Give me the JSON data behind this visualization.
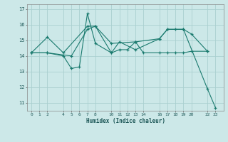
{
  "title": "",
  "xlabel": "Humidex (Indice chaleur)",
  "bg_color": "#cce8e8",
  "line_color": "#1a7a6e",
  "grid_color": "#aad0d0",
  "ylim": [
    10.5,
    17.3
  ],
  "xlim": [
    -0.5,
    24.0
  ],
  "xticks": [
    0,
    1,
    2,
    4,
    5,
    6,
    7,
    8,
    10,
    11,
    12,
    13,
    14,
    16,
    17,
    18,
    19,
    20,
    22,
    23
  ],
  "yticks": [
    11,
    12,
    13,
    14,
    15,
    16,
    17
  ],
  "series": [
    {
      "x": [
        0,
        2,
        4,
        7,
        8,
        10,
        13,
        16,
        17,
        18,
        19,
        20,
        22
      ],
      "y": [
        14.2,
        15.2,
        14.2,
        15.9,
        15.9,
        14.8,
        14.9,
        15.1,
        15.7,
        15.7,
        15.7,
        15.4,
        14.3
      ]
    },
    {
      "x": [
        0,
        2,
        4,
        5,
        6,
        7,
        8,
        10,
        11,
        12,
        13,
        14,
        16,
        17,
        18,
        19,
        20,
        22
      ],
      "y": [
        14.2,
        14.2,
        14.0,
        13.2,
        13.3,
        16.7,
        14.8,
        14.2,
        14.4,
        14.4,
        14.9,
        14.2,
        14.2,
        14.2,
        14.2,
        14.2,
        14.3,
        14.3
      ]
    },
    {
      "x": [
        0,
        2,
        5,
        7,
        8,
        10,
        11,
        13,
        16,
        17,
        19,
        22,
        23
      ],
      "y": [
        14.2,
        14.2,
        14.0,
        15.7,
        15.9,
        14.2,
        14.9,
        14.4,
        15.1,
        15.7,
        15.7,
        11.9,
        10.7
      ]
    }
  ]
}
